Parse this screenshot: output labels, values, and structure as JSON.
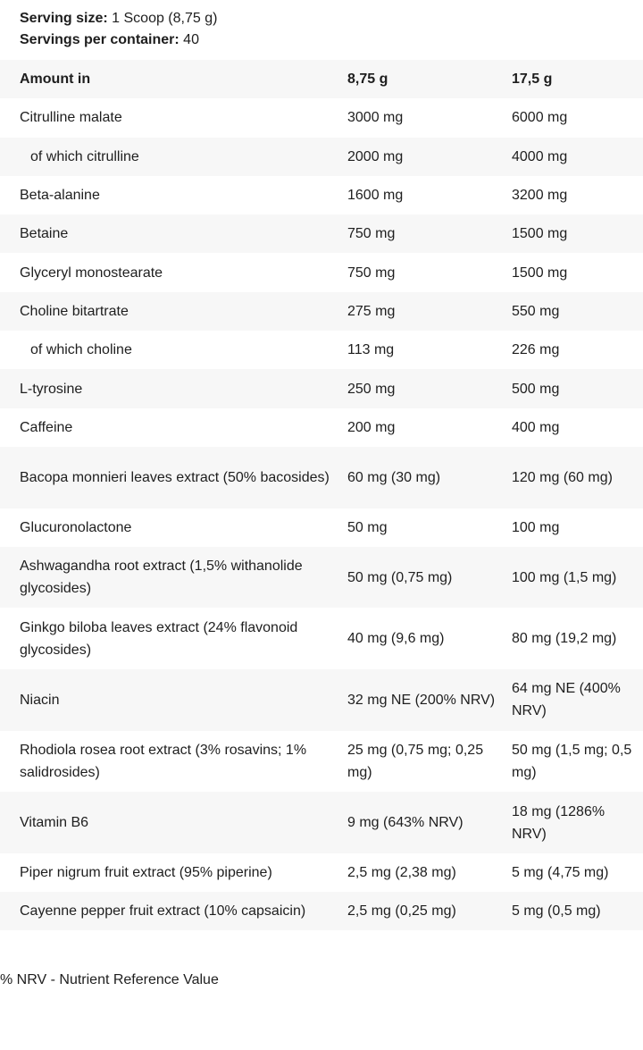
{
  "serving": {
    "size_label": "Serving size:",
    "size_value": " 1 Scoop (8,75 g)",
    "per_container_label": "Servings per container:",
    "per_container_value": " 40"
  },
  "table": {
    "header": {
      "name": "Amount in",
      "col1": "8,75 g",
      "col2": "17,5 g"
    },
    "rows": [
      {
        "name": "Citrulline malate",
        "col1": "3000 mg",
        "col2": "6000 mg"
      },
      {
        "name": "of which citrulline",
        "col1": "2000 mg",
        "col2": "4000 mg"
      },
      {
        "name": "Beta-alanine",
        "col1": "1600 mg",
        "col2": "3200 mg"
      },
      {
        "name": "Betaine",
        "col1": "750 mg",
        "col2": "1500 mg"
      },
      {
        "name": "Glyceryl monostearate",
        "col1": "750 mg",
        "col2": "1500 mg"
      },
      {
        "name": "Choline bitartrate",
        "col1": "275 mg",
        "col2": "550 mg"
      },
      {
        "name": "of which choline",
        "col1": "113 mg",
        "col2": "226 mg"
      },
      {
        "name": "L-tyrosine",
        "col1": "250 mg",
        "col2": "500 mg"
      },
      {
        "name": "Caffeine",
        "col1": "200 mg",
        "col2": "400 mg"
      },
      {
        "name": "Bacopa monnieri leaves extract (50% bacosides)",
        "col1": "60 mg (30 mg)",
        "col2": "120 mg (60 mg)"
      },
      {
        "name": "Glucuronolactone",
        "col1": "50 mg",
        "col2": "100 mg"
      },
      {
        "name": "Ashwagandha root extract (1,5% withanolide glycosides)",
        "col1": "50 mg (0,75 mg)",
        "col2": "100 mg (1,5 mg)"
      },
      {
        "name": "Ginkgo biloba leaves extract (24% flavonoid glycosides)",
        "col1": "40 mg (9,6 mg)",
        "col2": "80 mg (19,2 mg)"
      },
      {
        "name": "Niacin",
        "col1": "32 mg NE (200% NRV)",
        "col2": "64 mg NE (400% NRV)"
      },
      {
        "name": "Rhodiola rosea root extract (3% rosavins; 1% salidrosides)",
        "col1": "25 mg (0,75 mg; 0,25 mg)",
        "col2": "50 mg (1,5 mg; 0,5 mg)"
      },
      {
        "name": "Vitamin B6",
        "col1": "9 mg (643% NRV)",
        "col2": "18 mg (1286% NRV)"
      },
      {
        "name": "Piper nigrum fruit extract (95% piperine)",
        "col1": "2,5 mg (2,38 mg)",
        "col2": "5 mg (4,75 mg)"
      },
      {
        "name": "Cayenne pepper fruit extract (10% capsaicin)",
        "col1": "2,5 mg (0,25 mg)",
        "col2": "5 mg (0,5 mg)"
      }
    ]
  },
  "footnote": "% NRV - Nutrient Reference Value"
}
